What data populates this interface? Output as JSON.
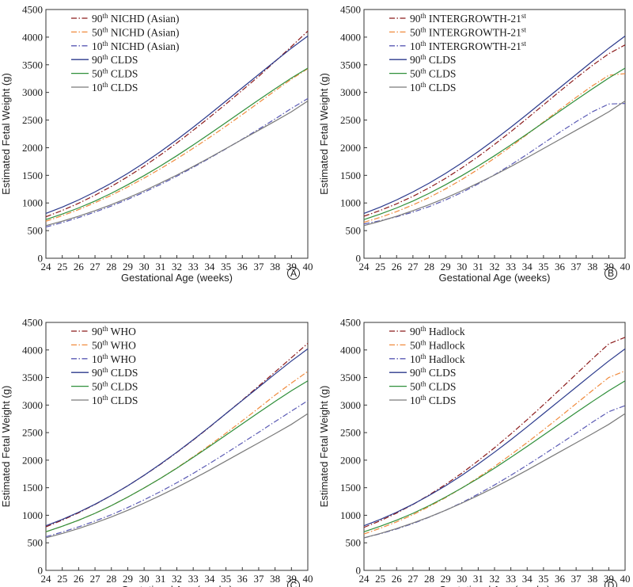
{
  "colors": {
    "p90_ref": "#8b1a1a",
    "p50_ref": "#f08a3c",
    "p10_ref": "#5a5ab4",
    "p90_clds": "#2b3a8c",
    "p50_clds": "#2f8f3a",
    "p10_clds": "#7a7a7a"
  },
  "chart_data": [
    {
      "type": "line",
      "panel": "A",
      "xlabel": "Gestational Age (weeks)",
      "ylabel": "Estimated Fetal Weight (g)",
      "xlim": [
        24,
        40
      ],
      "ylim": [
        0,
        4500
      ],
      "x_ticks": [
        24,
        25,
        26,
        27,
        28,
        29,
        30,
        31,
        32,
        33,
        34,
        35,
        36,
        37,
        38,
        39,
        40
      ],
      "y_ticks": [
        0,
        500,
        1000,
        1500,
        2000,
        2500,
        3000,
        3500,
        4000,
        4500
      ],
      "legend_position": "top-left",
      "x": [
        24,
        25,
        26,
        27,
        28,
        29,
        30,
        31,
        32,
        33,
        34,
        35,
        36,
        37,
        38,
        39,
        40
      ],
      "series": [
        {
          "sup": "90",
          "name": "NICHD (Asian)",
          "style": "dashdot",
          "color_key": "p90_ref",
          "values": [
            750,
            865,
            995,
            1140,
            1300,
            1475,
            1665,
            1870,
            2085,
            2315,
            2550,
            2790,
            3040,
            3290,
            3560,
            3830,
            4110
          ]
        },
        {
          "sup": "50",
          "name": "NICHD (Asian)",
          "style": "dashdot",
          "color_key": "p50_ref",
          "values": [
            670,
            770,
            880,
            1005,
            1140,
            1290,
            1450,
            1620,
            1800,
            1990,
            2185,
            2390,
            2600,
            2815,
            3030,
            3240,
            3430
          ]
        },
        {
          "sup": "10",
          "name": "NICHD (Asian)",
          "style": "dashdot",
          "color_key": "p10_ref",
          "values": [
            565,
            645,
            735,
            835,
            945,
            1065,
            1195,
            1335,
            1485,
            1645,
            1810,
            1980,
            2155,
            2335,
            2520,
            2710,
            2890
          ]
        },
        {
          "sup": "90",
          "name": "CLDS",
          "style": "solid",
          "color_key": "p90_clds",
          "values": [
            810,
            925,
            1055,
            1200,
            1360,
            1535,
            1725,
            1930,
            2145,
            2370,
            2605,
            2845,
            3085,
            3325,
            3565,
            3800,
            4020
          ]
        },
        {
          "sup": "50",
          "name": "CLDS",
          "style": "solid",
          "color_key": "p50_clds",
          "values": [
            700,
            800,
            910,
            1035,
            1175,
            1330,
            1495,
            1670,
            1855,
            2050,
            2250,
            2455,
            2660,
            2865,
            3065,
            3260,
            3440
          ]
        },
        {
          "sup": "10",
          "name": "CLDS",
          "style": "solid",
          "color_key": "p10_clds",
          "values": [
            590,
            670,
            760,
            860,
            970,
            1090,
            1220,
            1360,
            1505,
            1660,
            1820,
            1985,
            2150,
            2315,
            2480,
            2650,
            2845
          ]
        }
      ]
    },
    {
      "type": "line",
      "panel": "B",
      "xlabel": "Gestational Age (weeks)",
      "ylabel": "Estimated Fetal Weight (g)",
      "xlim": [
        24,
        40
      ],
      "ylim": [
        0,
        4500
      ],
      "x_ticks": [
        24,
        25,
        26,
        27,
        28,
        29,
        30,
        31,
        32,
        33,
        34,
        35,
        36,
        37,
        38,
        39,
        40
      ],
      "y_ticks": [
        0,
        500,
        1000,
        1500,
        2000,
        2500,
        3000,
        3500,
        4000,
        4500
      ],
      "legend_position": "top-left",
      "x": [
        24,
        25,
        26,
        27,
        28,
        29,
        30,
        31,
        32,
        33,
        34,
        35,
        36,
        37,
        38,
        39,
        40
      ],
      "series": [
        {
          "sup": "90",
          "name": "INTERGROWTH-21",
          "name_sup": "st",
          "style": "dashdot",
          "color_key": "p90_ref",
          "values": [
            760,
            865,
            985,
            1120,
            1275,
            1445,
            1635,
            1840,
            2060,
            2290,
            2530,
            2775,
            3020,
            3260,
            3490,
            3700,
            3860
          ]
        },
        {
          "sup": "50",
          "name": "INTERGROWTH-21",
          "name_sup": "st",
          "style": "dashdot",
          "color_key": "p50_ref",
          "values": [
            650,
            740,
            845,
            965,
            1100,
            1255,
            1425,
            1610,
            1810,
            2020,
            2240,
            2465,
            2690,
            2910,
            3120,
            3310,
            3340
          ]
        },
        {
          "sup": "10",
          "name": "INTERGROWTH-21",
          "name_sup": "st",
          "style": "dashdot",
          "color_key": "p10_ref",
          "values": [
            620,
            680,
            750,
            835,
            935,
            1055,
            1190,
            1345,
            1510,
            1690,
            1880,
            2080,
            2280,
            2470,
            2650,
            2790,
            2800
          ]
        },
        {
          "sup": "90",
          "name": "CLDS",
          "style": "solid",
          "color_key": "p90_clds",
          "values": [
            810,
            925,
            1055,
            1200,
            1360,
            1535,
            1725,
            1930,
            2145,
            2370,
            2605,
            2845,
            3085,
            3325,
            3565,
            3800,
            4020
          ]
        },
        {
          "sup": "50",
          "name": "CLDS",
          "style": "solid",
          "color_key": "p50_clds",
          "values": [
            700,
            800,
            910,
            1035,
            1175,
            1330,
            1495,
            1670,
            1855,
            2050,
            2250,
            2455,
            2660,
            2865,
            3065,
            3260,
            3440
          ]
        },
        {
          "sup": "10",
          "name": "CLDS",
          "style": "solid",
          "color_key": "p10_clds",
          "values": [
            590,
            670,
            760,
            860,
            970,
            1090,
            1220,
            1360,
            1505,
            1660,
            1820,
            1985,
            2150,
            2315,
            2480,
            2650,
            2845
          ]
        }
      ]
    },
    {
      "type": "line",
      "panel": "C",
      "xlabel": "Gestational Age (weeks)",
      "ylabel": "Estimated Fetal Weight (g)",
      "xlim": [
        24,
        40
      ],
      "ylim": [
        0,
        4500
      ],
      "x_ticks": [
        24,
        25,
        26,
        27,
        28,
        29,
        30,
        31,
        32,
        33,
        34,
        35,
        36,
        37,
        38,
        39,
        40
      ],
      "y_ticks": [
        0,
        500,
        1000,
        1500,
        2000,
        2500,
        3000,
        3500,
        4000,
        4500
      ],
      "legend_position": "top-left",
      "x": [
        24,
        25,
        26,
        27,
        28,
        29,
        30,
        31,
        32,
        33,
        34,
        35,
        36,
        37,
        38,
        39,
        40
      ],
      "series": [
        {
          "sup": "90",
          "name": "WHO",
          "style": "dashdot",
          "color_key": "p90_ref",
          "values": [
            790,
            910,
            1045,
            1195,
            1360,
            1535,
            1725,
            1925,
            2140,
            2365,
            2600,
            2845,
            3090,
            3345,
            3600,
            3860,
            4120
          ]
        },
        {
          "sup": "50",
          "name": "WHO",
          "style": "dashdot",
          "color_key": "p50_ref",
          "values": [
            700,
            800,
            910,
            1035,
            1175,
            1330,
            1495,
            1670,
            1860,
            2060,
            2270,
            2490,
            2715,
            2945,
            3180,
            3400,
            3610
          ]
        },
        {
          "sup": "10",
          "name": "WHO",
          "style": "dashdot",
          "color_key": "p10_ref",
          "values": [
            610,
            695,
            790,
            895,
            1010,
            1140,
            1280,
            1430,
            1590,
            1760,
            1940,
            2125,
            2315,
            2505,
            2700,
            2890,
            3080
          ]
        },
        {
          "sup": "90",
          "name": "CLDS",
          "style": "solid",
          "color_key": "p90_clds",
          "values": [
            810,
            925,
            1055,
            1200,
            1360,
            1535,
            1725,
            1930,
            2145,
            2370,
            2605,
            2845,
            3085,
            3325,
            3565,
            3800,
            4020
          ]
        },
        {
          "sup": "50",
          "name": "CLDS",
          "style": "solid",
          "color_key": "p50_clds",
          "values": [
            700,
            800,
            910,
            1035,
            1175,
            1330,
            1495,
            1670,
            1855,
            2050,
            2250,
            2455,
            2660,
            2865,
            3065,
            3260,
            3440
          ]
        },
        {
          "sup": "10",
          "name": "CLDS",
          "style": "solid",
          "color_key": "p10_clds",
          "values": [
            590,
            670,
            760,
            860,
            970,
            1090,
            1220,
            1360,
            1505,
            1660,
            1820,
            1985,
            2150,
            2315,
            2480,
            2650,
            2845
          ]
        }
      ]
    },
    {
      "type": "line",
      "panel": "D",
      "xlabel": "Gestational Age (weeks)",
      "ylabel": "Estimated Fetal Weight (g)",
      "xlim": [
        24,
        40
      ],
      "ylim": [
        0,
        4500
      ],
      "x_ticks": [
        24,
        25,
        26,
        27,
        28,
        29,
        30,
        31,
        32,
        33,
        34,
        35,
        36,
        37,
        38,
        39,
        40
      ],
      "y_ticks": [
        0,
        500,
        1000,
        1500,
        2000,
        2500,
        3000,
        3500,
        4000,
        4500
      ],
      "legend_position": "top-left",
      "x": [
        24,
        25,
        26,
        27,
        28,
        29,
        30,
        31,
        32,
        33,
        34,
        35,
        36,
        37,
        38,
        39,
        40
      ],
      "series": [
        {
          "sup": "90",
          "name": "Hadlock",
          "style": "dashdot",
          "color_key": "p90_ref",
          "values": [
            780,
            900,
            1040,
            1195,
            1370,
            1560,
            1765,
            1990,
            2225,
            2475,
            2735,
            3005,
            3280,
            3560,
            3840,
            4110,
            4230
          ]
        },
        {
          "sup": "50",
          "name": "Hadlock",
          "style": "dashdot",
          "color_key": "p50_ref",
          "values": [
            660,
            765,
            880,
            1010,
            1160,
            1320,
            1495,
            1685,
            1885,
            2100,
            2320,
            2550,
            2785,
            3025,
            3265,
            3500,
            3620
          ]
        },
        {
          "sup": "10",
          "name": "Hadlock",
          "style": "dashdot",
          "color_key": "p10_ref",
          "values": [
            590,
            665,
            750,
            850,
            965,
            1090,
            1230,
            1385,
            1550,
            1725,
            1910,
            2100,
            2295,
            2490,
            2690,
            2880,
            2990
          ]
        },
        {
          "sup": "90",
          "name": "CLDS",
          "style": "solid",
          "color_key": "p90_clds",
          "values": [
            810,
            925,
            1055,
            1200,
            1360,
            1535,
            1725,
            1930,
            2145,
            2370,
            2605,
            2845,
            3085,
            3325,
            3565,
            3800,
            4020
          ]
        },
        {
          "sup": "50",
          "name": "CLDS",
          "style": "solid",
          "color_key": "p50_clds",
          "values": [
            700,
            800,
            910,
            1035,
            1175,
            1330,
            1495,
            1670,
            1855,
            2050,
            2250,
            2455,
            2660,
            2865,
            3065,
            3260,
            3440
          ]
        },
        {
          "sup": "10",
          "name": "CLDS",
          "style": "solid",
          "color_key": "p10_clds",
          "values": [
            590,
            670,
            760,
            860,
            970,
            1090,
            1220,
            1360,
            1505,
            1660,
            1820,
            1985,
            2150,
            2315,
            2480,
            2650,
            2845
          ]
        }
      ]
    }
  ]
}
